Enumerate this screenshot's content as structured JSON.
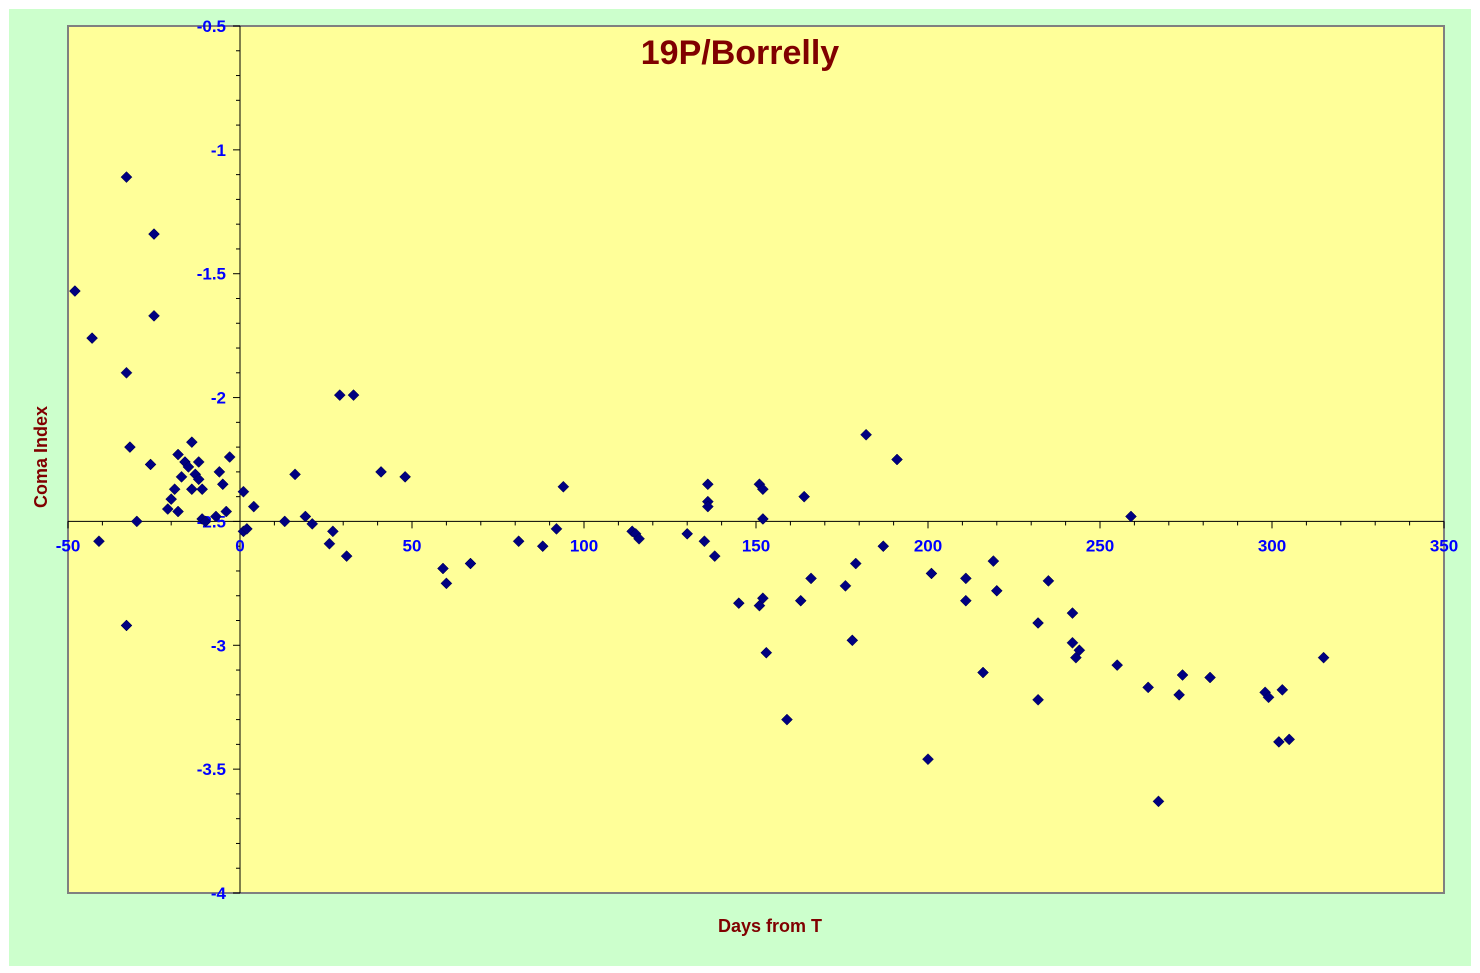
{
  "chart_data": {
    "type": "scatter",
    "title": "19P/Borrelly",
    "xlabel": "Days from T",
    "ylabel": "Coma Index",
    "xlim": [
      -50,
      350
    ],
    "ylim": [
      -4,
      -0.5
    ],
    "x_ticks": [
      -50,
      0,
      50,
      100,
      150,
      200,
      250,
      300,
      350
    ],
    "y_ticks": [
      -0.5,
      -1,
      -1.5,
      -2,
      -2.5,
      -3,
      -3.5,
      -4
    ],
    "x_tick_labels": [
      "-50",
      "0",
      "50",
      "100",
      "150",
      "200",
      "250",
      "300",
      "350"
    ],
    "y_tick_labels": [
      "-0.5",
      "-1",
      "-1.5",
      "-2",
      "-2.5",
      "-3",
      "-3.5",
      "-4"
    ],
    "grid": false,
    "marker": "diamond",
    "colors": {
      "background": "#ccffcc",
      "plot_area": "#ffff99",
      "marker": "#000080",
      "tick_labels": "#0000ff",
      "title": "#800000",
      "axis_titles": "#800000"
    },
    "series": [
      {
        "points": [
          [
            -48,
            -1.57
          ],
          [
            -43,
            -1.76
          ],
          [
            -41,
            -2.58
          ],
          [
            -33,
            -1.11
          ],
          [
            -33,
            -1.9
          ],
          [
            -32,
            -2.2
          ],
          [
            -33,
            -2.92
          ],
          [
            -30,
            -2.5
          ],
          [
            -26,
            -2.27
          ],
          [
            -25,
            -1.34
          ],
          [
            -25,
            -1.67
          ],
          [
            -21,
            -2.45
          ],
          [
            -20,
            -2.41
          ],
          [
            -19,
            -2.37
          ],
          [
            -18,
            -2.46
          ],
          [
            -18,
            -2.23
          ],
          [
            -17,
            -2.32
          ],
          [
            -16,
            -2.26
          ],
          [
            -15,
            -2.28
          ],
          [
            -14,
            -2.18
          ],
          [
            -14,
            -2.37
          ],
          [
            -13,
            -2.31
          ],
          [
            -12,
            -2.33
          ],
          [
            -12,
            -2.26
          ],
          [
            -11,
            -2.37
          ],
          [
            -11,
            -2.49
          ],
          [
            -10,
            -2.5
          ],
          [
            -7,
            -2.48
          ],
          [
            -6,
            -2.3
          ],
          [
            -5,
            -2.35
          ],
          [
            -4,
            -2.46
          ],
          [
            -3,
            -2.24
          ],
          [
            1,
            -2.38
          ],
          [
            1,
            -2.54
          ],
          [
            2,
            -2.53
          ],
          [
            4,
            -2.44
          ],
          [
            13,
            -2.5
          ],
          [
            16,
            -2.31
          ],
          [
            19,
            -2.48
          ],
          [
            21,
            -2.51
          ],
          [
            26,
            -2.59
          ],
          [
            27,
            -2.54
          ],
          [
            29,
            -1.99
          ],
          [
            31,
            -2.64
          ],
          [
            33,
            -1.99
          ],
          [
            41,
            -2.3
          ],
          [
            48,
            -2.32
          ],
          [
            59,
            -2.69
          ],
          [
            60,
            -2.75
          ],
          [
            67,
            -2.67
          ],
          [
            81,
            -2.58
          ],
          [
            88,
            -2.6
          ],
          [
            92,
            -2.53
          ],
          [
            94,
            -2.36
          ],
          [
            114,
            -2.54
          ],
          [
            115,
            -2.55
          ],
          [
            116,
            -2.57
          ],
          [
            130,
            -2.55
          ],
          [
            135,
            -2.58
          ],
          [
            136,
            -2.35
          ],
          [
            136,
            -2.42
          ],
          [
            136,
            -2.44
          ],
          [
            138,
            -2.64
          ],
          [
            145,
            -2.83
          ],
          [
            151,
            -2.35
          ],
          [
            151,
            -2.84
          ],
          [
            152,
            -2.49
          ],
          [
            152,
            -2.37
          ],
          [
            152,
            -2.81
          ],
          [
            153,
            -3.03
          ],
          [
            159,
            -3.3
          ],
          [
            163,
            -2.82
          ],
          [
            164,
            -2.4
          ],
          [
            166,
            -2.73
          ],
          [
            176,
            -2.76
          ],
          [
            178,
            -2.98
          ],
          [
            179,
            -2.67
          ],
          [
            182,
            -2.15
          ],
          [
            187,
            -2.6
          ],
          [
            191,
            -2.25
          ],
          [
            200,
            -3.46
          ],
          [
            201,
            -2.71
          ],
          [
            211,
            -2.73
          ],
          [
            211,
            -2.82
          ],
          [
            216,
            -3.11
          ],
          [
            219,
            -2.66
          ],
          [
            220,
            -2.78
          ],
          [
            232,
            -2.91
          ],
          [
            232,
            -3.22
          ],
          [
            235,
            -2.74
          ],
          [
            242,
            -2.87
          ],
          [
            242,
            -2.99
          ],
          [
            243,
            -3.05
          ],
          [
            244,
            -3.02
          ],
          [
            255,
            -3.08
          ],
          [
            259,
            -2.48
          ],
          [
            264,
            -3.17
          ],
          [
            267,
            -3.63
          ],
          [
            273,
            -3.2
          ],
          [
            274,
            -3.12
          ],
          [
            282,
            -3.13
          ],
          [
            298,
            -3.19
          ],
          [
            299,
            -3.21
          ],
          [
            302,
            -3.39
          ],
          [
            303,
            -3.18
          ],
          [
            305,
            -3.38
          ],
          [
            315,
            -3.05
          ]
        ]
      }
    ]
  }
}
